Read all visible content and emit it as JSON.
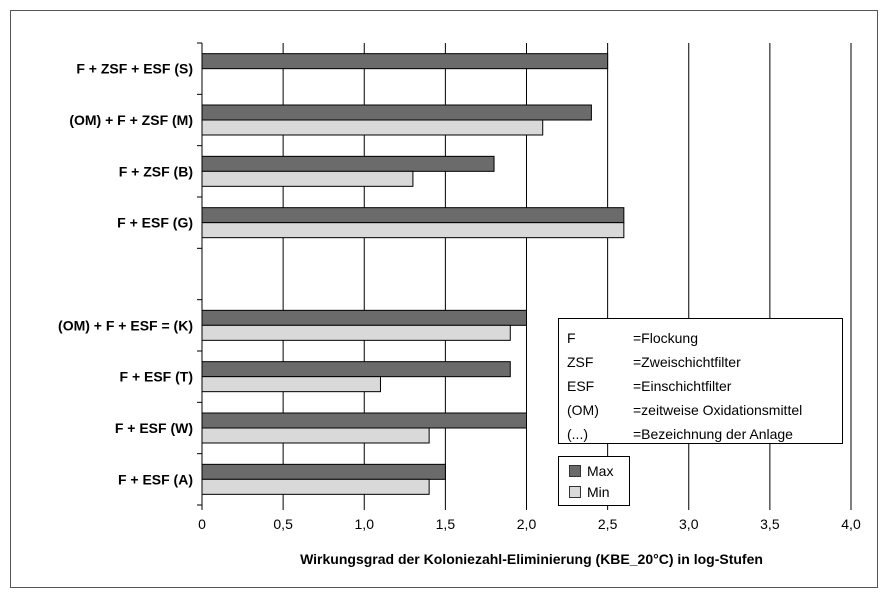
{
  "chart_data": {
    "type": "bar",
    "orientation": "horizontal",
    "categories": [
      "F + ZSF + ESF (S)",
      "(OM) + F + ZSF (M)",
      "F + ZSF (B)",
      "F + ESF (G)",
      "",
      "(OM) + F + ESF = (K)",
      "F + ESF (T)",
      "F + ESF (W)",
      "F + ESF (A)"
    ],
    "series": [
      {
        "name": "Max",
        "color": "#6b6b6b",
        "values": [
          2.5,
          2.4,
          1.8,
          2.6,
          null,
          2.0,
          1.9,
          2.0,
          1.5
        ]
      },
      {
        "name": "Min",
        "color": "#d9d9d9",
        "values": [
          null,
          2.1,
          1.3,
          2.6,
          null,
          1.9,
          1.1,
          1.4,
          1.4
        ]
      }
    ],
    "xlabel": "Wirkungsgrad der Koloniezahl-Eliminierung (KBE_20°C) in log-Stufen",
    "ylabel": "",
    "xlim": [
      0,
      4.0
    ],
    "x_ticks": [
      "0",
      "0,5",
      "1,0",
      "1,5",
      "2,0",
      "2,5",
      "3,0",
      "3,5",
      "4,0"
    ],
    "grid": "vertical",
    "legend_position": "bottom-right"
  },
  "abbreviations": [
    {
      "key": "F",
      "def": "=Flockung"
    },
    {
      "key": "ZSF",
      "def": "=Zweischichtfilter"
    },
    {
      "key": "ESF",
      "def": "=Einschichtfilter"
    },
    {
      "key": "(OM)",
      "def": "=zeitweise Oxidationsmittel"
    },
    {
      "key": "(...)",
      "def": "=Bezeichnung der Anlage"
    }
  ]
}
